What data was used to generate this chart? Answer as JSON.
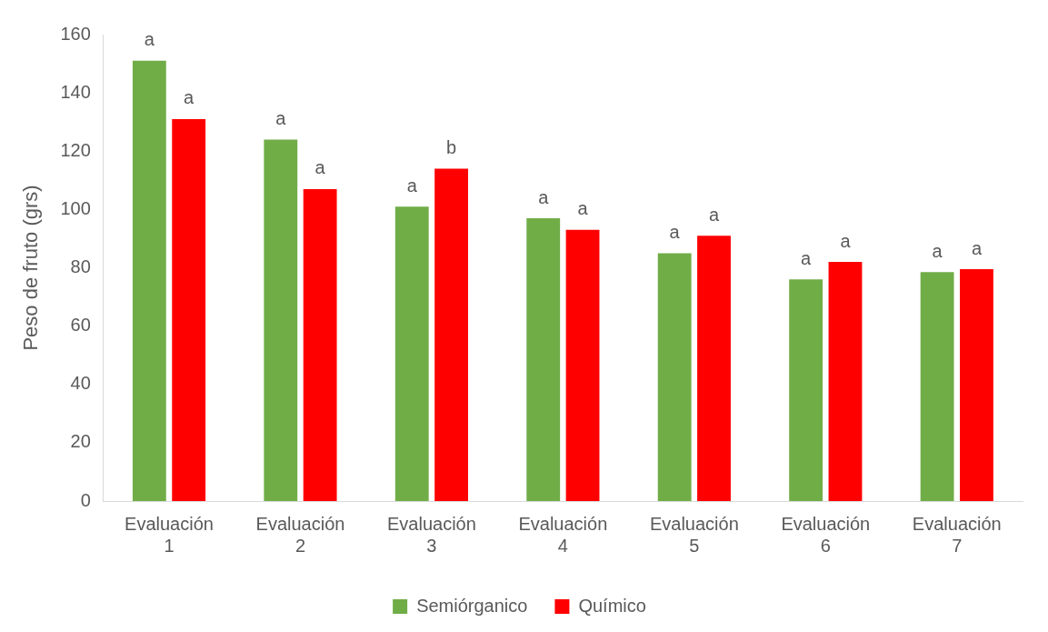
{
  "chart_data": {
    "type": "bar",
    "ylabel": "Peso de fruto (grs)",
    "categories": [
      "Evaluación 1",
      "Evaluación 2",
      "Evaluación 3",
      "Evaluación 4",
      "Evaluación 5",
      "Evaluación 6",
      "Evaluación 7"
    ],
    "series": [
      {
        "name": "Semiórganico",
        "color": "#70ad47",
        "values": [
          151,
          124,
          101,
          97,
          85,
          76,
          78.5
        ],
        "value_labels": [
          "a",
          "a",
          "a",
          "a",
          "a",
          "a",
          "a"
        ]
      },
      {
        "name": "Químico",
        "color": "#ff0000",
        "values": [
          131,
          107,
          114,
          93,
          91,
          82,
          79.5
        ],
        "value_labels": [
          "a",
          "a",
          "b",
          "a",
          "a",
          "a",
          "a"
        ]
      }
    ],
    "ylim": [
      0,
      160
    ],
    "yticks": [
      0,
      20,
      40,
      60,
      80,
      100,
      120,
      140,
      160
    ],
    "grid": false,
    "legend": "bottom"
  }
}
